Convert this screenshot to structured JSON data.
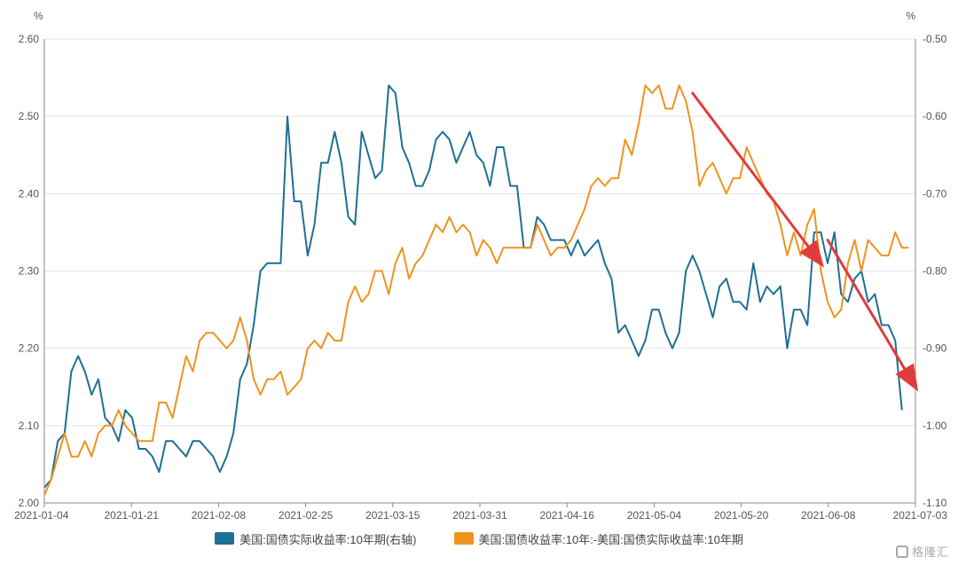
{
  "chart_data": {
    "type": "line",
    "left_unit": "%",
    "right_unit": "%",
    "y_left": {
      "range": [
        2.0,
        2.6
      ],
      "ticks": [
        "2.00",
        "2.10",
        "2.20",
        "2.30",
        "2.40",
        "2.50",
        "2.60"
      ]
    },
    "y_right": {
      "range": [
        -1.1,
        -0.5
      ],
      "ticks": [
        "-1.10",
        "-1.00",
        "-0.90",
        "-0.80",
        "-0.70",
        "-0.60",
        "-0.50"
      ]
    },
    "x_ticks": [
      "2021-01-04",
      "2021-01-21",
      "2021-02-08",
      "2021-02-25",
      "2021-03-15",
      "2021-03-31",
      "2021-04-16",
      "2021-05-04",
      "2021-05-20",
      "2021-06-08",
      "2021-07-03"
    ],
    "x_count": 130,
    "grid": "horizontal",
    "legend_position": "bottom-center",
    "series": [
      {
        "name": "美国:国债实际收益率:10年期(右轴)",
        "color": "#1f6f94",
        "axis": "right",
        "points": [
          [
            0,
            -1.08
          ],
          [
            1,
            -1.07
          ],
          [
            2,
            -1.02
          ],
          [
            3,
            -1.01
          ],
          [
            4,
            -0.93
          ],
          [
            5,
            -0.91
          ],
          [
            6,
            -0.93
          ],
          [
            7,
            -0.96
          ],
          [
            8,
            -0.94
          ],
          [
            9,
            -0.99
          ],
          [
            10,
            -1.0
          ],
          [
            11,
            -1.02
          ],
          [
            12,
            -0.98
          ],
          [
            13,
            -0.99
          ],
          [
            14,
            -1.03
          ],
          [
            15,
            -1.03
          ],
          [
            16,
            -1.04
          ],
          [
            17,
            -1.06
          ],
          [
            18,
            -1.02
          ],
          [
            19,
            -1.02
          ],
          [
            20,
            -1.03
          ],
          [
            21,
            -1.04
          ],
          [
            22,
            -1.02
          ],
          [
            23,
            -1.02
          ],
          [
            24,
            -1.03
          ],
          [
            25,
            -1.04
          ],
          [
            26,
            -1.06
          ],
          [
            27,
            -1.04
          ],
          [
            28,
            -1.01
          ],
          [
            29,
            -0.94
          ],
          [
            30,
            -0.92
          ],
          [
            31,
            -0.87
          ],
          [
            32,
            -0.8
          ],
          [
            33,
            -0.79
          ],
          [
            34,
            -0.79
          ],
          [
            35,
            -0.79
          ],
          [
            36,
            -0.6
          ],
          [
            37,
            -0.71
          ],
          [
            38,
            -0.71
          ],
          [
            39,
            -0.78
          ],
          [
            40,
            -0.74
          ],
          [
            41,
            -0.66
          ],
          [
            42,
            -0.66
          ],
          [
            43,
            -0.62
          ],
          [
            44,
            -0.66
          ],
          [
            45,
            -0.73
          ],
          [
            46,
            -0.74
          ],
          [
            47,
            -0.62
          ],
          [
            48,
            -0.65
          ],
          [
            49,
            -0.68
          ],
          [
            50,
            -0.67
          ],
          [
            51,
            -0.56
          ],
          [
            52,
            -0.57
          ],
          [
            53,
            -0.64
          ],
          [
            54,
            -0.66
          ],
          [
            55,
            -0.69
          ],
          [
            56,
            -0.69
          ],
          [
            57,
            -0.67
          ],
          [
            58,
            -0.63
          ],
          [
            59,
            -0.62
          ],
          [
            60,
            -0.63
          ],
          [
            61,
            -0.66
          ],
          [
            62,
            -0.64
          ],
          [
            63,
            -0.62
          ],
          [
            64,
            -0.65
          ],
          [
            65,
            -0.66
          ],
          [
            66,
            -0.69
          ],
          [
            67,
            -0.64
          ],
          [
            68,
            -0.64
          ],
          [
            69,
            -0.69
          ],
          [
            70,
            -0.69
          ],
          [
            71,
            -0.77
          ],
          [
            72,
            -0.77
          ],
          [
            73,
            -0.73
          ],
          [
            74,
            -0.74
          ],
          [
            75,
            -0.76
          ],
          [
            76,
            -0.76
          ],
          [
            77,
            -0.76
          ],
          [
            78,
            -0.78
          ],
          [
            79,
            -0.76
          ],
          [
            80,
            -0.78
          ],
          [
            81,
            -0.77
          ],
          [
            82,
            -0.76
          ],
          [
            83,
            -0.79
          ],
          [
            84,
            -0.81
          ],
          [
            85,
            -0.88
          ],
          [
            86,
            -0.87
          ],
          [
            87,
            -0.89
          ],
          [
            88,
            -0.91
          ],
          [
            89,
            -0.89
          ],
          [
            90,
            -0.85
          ],
          [
            91,
            -0.85
          ],
          [
            92,
            -0.88
          ],
          [
            93,
            -0.9
          ],
          [
            94,
            -0.88
          ],
          [
            95,
            -0.8
          ],
          [
            96,
            -0.78
          ],
          [
            97,
            -0.8
          ],
          [
            98,
            -0.83
          ],
          [
            99,
            -0.86
          ],
          [
            100,
            -0.82
          ],
          [
            101,
            -0.81
          ],
          [
            102,
            -0.84
          ],
          [
            103,
            -0.84
          ],
          [
            104,
            -0.85
          ],
          [
            105,
            -0.79
          ],
          [
            106,
            -0.84
          ],
          [
            107,
            -0.82
          ],
          [
            108,
            -0.83
          ],
          [
            109,
            -0.82
          ],
          [
            110,
            -0.9
          ],
          [
            111,
            -0.85
          ],
          [
            112,
            -0.85
          ],
          [
            113,
            -0.87
          ],
          [
            114,
            -0.75
          ],
          [
            115,
            -0.75
          ],
          [
            116,
            -0.79
          ],
          [
            117,
            -0.75
          ],
          [
            118,
            -0.83
          ],
          [
            119,
            -0.84
          ],
          [
            120,
            -0.81
          ],
          [
            121,
            -0.8
          ],
          [
            122,
            -0.84
          ],
          [
            123,
            -0.83
          ],
          [
            124,
            -0.87
          ],
          [
            125,
            -0.87
          ],
          [
            126,
            -0.89
          ],
          [
            127,
            -0.98
          ]
        ]
      },
      {
        "name": "美国:国债收益率:10年:-美国:国债实际收益率:10年期",
        "color": "#f0931e",
        "axis": "left",
        "points": [
          [
            0,
            2.01
          ],
          [
            1,
            2.03
          ],
          [
            2,
            2.06
          ],
          [
            3,
            2.09
          ],
          [
            4,
            2.06
          ],
          [
            5,
            2.06
          ],
          [
            6,
            2.08
          ],
          [
            7,
            2.06
          ],
          [
            8,
            2.09
          ],
          [
            9,
            2.1
          ],
          [
            10,
            2.1
          ],
          [
            11,
            2.12
          ],
          [
            12,
            2.1
          ],
          [
            13,
            2.09
          ],
          [
            14,
            2.08
          ],
          [
            15,
            2.08
          ],
          [
            16,
            2.08
          ],
          [
            17,
            2.13
          ],
          [
            18,
            2.13
          ],
          [
            19,
            2.11
          ],
          [
            20,
            2.15
          ],
          [
            21,
            2.19
          ],
          [
            22,
            2.17
          ],
          [
            23,
            2.21
          ],
          [
            24,
            2.22
          ],
          [
            25,
            2.22
          ],
          [
            26,
            2.21
          ],
          [
            27,
            2.2
          ],
          [
            28,
            2.21
          ],
          [
            29,
            2.24
          ],
          [
            30,
            2.21
          ],
          [
            31,
            2.16
          ],
          [
            32,
            2.14
          ],
          [
            33,
            2.16
          ],
          [
            34,
            2.16
          ],
          [
            35,
            2.17
          ],
          [
            36,
            2.14
          ],
          [
            37,
            2.15
          ],
          [
            38,
            2.16
          ],
          [
            39,
            2.2
          ],
          [
            40,
            2.21
          ],
          [
            41,
            2.2
          ],
          [
            42,
            2.22
          ],
          [
            43,
            2.21
          ],
          [
            44,
            2.21
          ],
          [
            45,
            2.26
          ],
          [
            46,
            2.28
          ],
          [
            47,
            2.26
          ],
          [
            48,
            2.27
          ],
          [
            49,
            2.3
          ],
          [
            50,
            2.3
          ],
          [
            51,
            2.27
          ],
          [
            52,
            2.31
          ],
          [
            53,
            2.33
          ],
          [
            54,
            2.29
          ],
          [
            55,
            2.31
          ],
          [
            56,
            2.32
          ],
          [
            57,
            2.34
          ],
          [
            58,
            2.36
          ],
          [
            59,
            2.35
          ],
          [
            60,
            2.37
          ],
          [
            61,
            2.35
          ],
          [
            62,
            2.36
          ],
          [
            63,
            2.35
          ],
          [
            64,
            2.32
          ],
          [
            65,
            2.34
          ],
          [
            66,
            2.33
          ],
          [
            67,
            2.31
          ],
          [
            68,
            2.33
          ],
          [
            69,
            2.33
          ],
          [
            70,
            2.33
          ],
          [
            71,
            2.33
          ],
          [
            72,
            2.33
          ],
          [
            73,
            2.36
          ],
          [
            74,
            2.34
          ],
          [
            75,
            2.32
          ],
          [
            76,
            2.33
          ],
          [
            77,
            2.33
          ],
          [
            78,
            2.34
          ],
          [
            79,
            2.36
          ],
          [
            80,
            2.38
          ],
          [
            81,
            2.41
          ],
          [
            82,
            2.42
          ],
          [
            83,
            2.41
          ],
          [
            84,
            2.42
          ],
          [
            85,
            2.42
          ],
          [
            86,
            2.47
          ],
          [
            87,
            2.45
          ],
          [
            88,
            2.49
          ],
          [
            89,
            2.54
          ],
          [
            90,
            2.53
          ],
          [
            91,
            2.54
          ],
          [
            92,
            2.51
          ],
          [
            93,
            2.51
          ],
          [
            94,
            2.54
          ],
          [
            95,
            2.52
          ],
          [
            96,
            2.48
          ],
          [
            97,
            2.41
          ],
          [
            98,
            2.43
          ],
          [
            99,
            2.44
          ],
          [
            100,
            2.42
          ],
          [
            101,
            2.4
          ],
          [
            102,
            2.42
          ],
          [
            103,
            2.42
          ],
          [
            104,
            2.46
          ],
          [
            105,
            2.44
          ],
          [
            106,
            2.42
          ],
          [
            107,
            2.4
          ],
          [
            108,
            2.39
          ],
          [
            109,
            2.36
          ],
          [
            110,
            2.32
          ],
          [
            111,
            2.35
          ],
          [
            112,
            2.32
          ],
          [
            113,
            2.36
          ],
          [
            114,
            2.38
          ],
          [
            115,
            2.3
          ],
          [
            116,
            2.26
          ],
          [
            117,
            2.24
          ],
          [
            118,
            2.25
          ],
          [
            119,
            2.31
          ],
          [
            120,
            2.34
          ],
          [
            121,
            2.3
          ],
          [
            122,
            2.34
          ],
          [
            123,
            2.33
          ],
          [
            124,
            2.32
          ],
          [
            125,
            2.32
          ],
          [
            126,
            2.35
          ],
          [
            127,
            2.33
          ],
          [
            128,
            2.33
          ]
        ]
      }
    ],
    "annotations": [
      {
        "type": "arrow",
        "color": "#e23b3b",
        "axis": "left",
        "from": [
          96,
          2.53
        ],
        "to": [
          115,
          2.31
        ]
      },
      {
        "type": "arrow",
        "color": "#e23b3b",
        "axis": "left",
        "from": [
          116,
          2.34
        ],
        "to": [
          129,
          2.15
        ]
      }
    ]
  },
  "watermark": {
    "text": "格隆汇"
  }
}
